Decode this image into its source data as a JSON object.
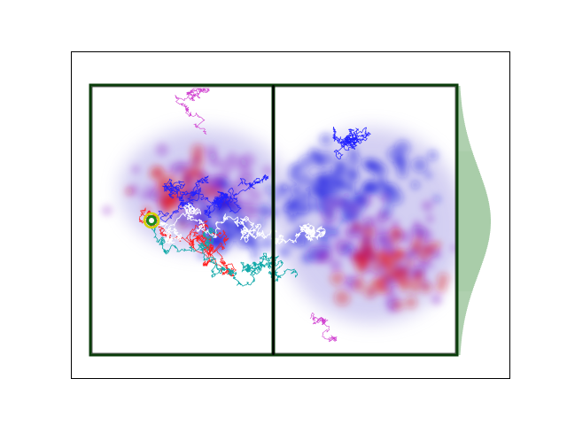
{
  "figure": {
    "description_visible_text": "",
    "colors": {
      "axes_frame": "#000000",
      "chamber_wall": "#0b3d0b",
      "chamber_wall_inner": "#000000",
      "histogram": "#1a7a1a",
      "source_ring_outer": "#d4d400",
      "source_ring_inner": "#1a8a1a",
      "source_center": "#ffffff",
      "cloud_blue": "#1010e0",
      "cloud_red": "#e01020",
      "cloud_purple": "#7a10c0",
      "path_white": "#ffffff",
      "path_teal": "#10a8a8",
      "path_blue": "#2020ff",
      "path_red": "#ff2020",
      "path_magenta": "#d040d0"
    },
    "icons": [
      "source-marker-icon"
    ]
  }
}
